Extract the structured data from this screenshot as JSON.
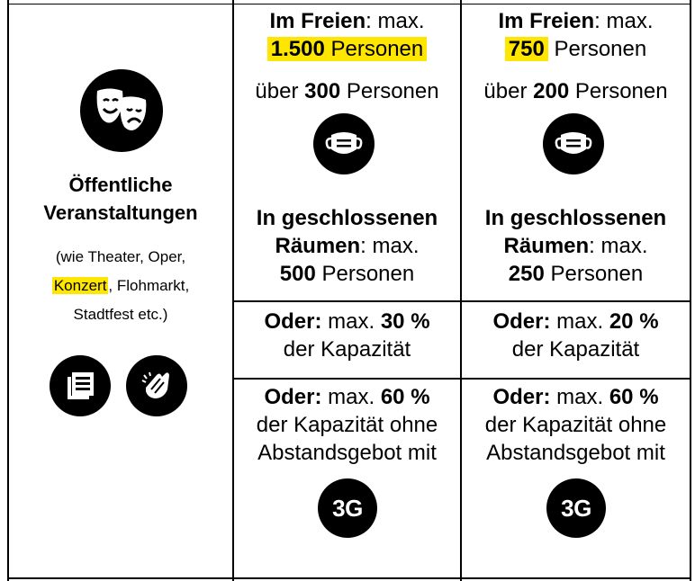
{
  "category": {
    "icon": "theater-masks-icon",
    "title_line1": "Öffentliche",
    "title_line2": "Veranstaltungen",
    "sub_line1": "(wie Theater, Oper,",
    "sub_highlight": "Konzert",
    "sub_line2_rest": ", Flohmarkt,",
    "sub_line3": "Stadtfest etc.)",
    "icons": [
      "document-list-icon",
      "hands-clapping-icon"
    ]
  },
  "columns": [
    {
      "outdoor_label": "Im Freien",
      "outdoor_suffix": ": max.",
      "outdoor_value": "1.500",
      "outdoor_unit": " Personen",
      "mask_prefix": "über ",
      "mask_value": "300",
      "mask_unit": " Personen",
      "indoor_line1": "In geschlossenen",
      "indoor_label2": "Räumen",
      "indoor_suffix": ": max.",
      "indoor_value": "500",
      "indoor_unit": " Personen",
      "capacity_label": "Oder:",
      "capacity_mid": " max. ",
      "capacity_value": "30 %",
      "capacity_line2": "der Kapazität",
      "three_g_label": "Oder:",
      "three_g_mid": " max. ",
      "three_g_value": "60 %",
      "three_g_line2": "der Kapazität ohne",
      "three_g_line3": "Abstandsgebot mit",
      "three_g_badge": "3G"
    },
    {
      "outdoor_label": "Im Freien",
      "outdoor_suffix": ": max.",
      "outdoor_value": "750",
      "outdoor_unit": " Personen",
      "mask_prefix": "über ",
      "mask_value": "200",
      "mask_unit": " Personen",
      "indoor_line1": "In geschlossenen",
      "indoor_label2": "Räumen",
      "indoor_suffix": ": max.",
      "indoor_value": "250",
      "indoor_unit": " Personen",
      "capacity_label": "Oder:",
      "capacity_mid": " max. ",
      "capacity_value": "20 %",
      "capacity_line2": "der Kapazität",
      "three_g_label": "Oder:",
      "three_g_mid": " max. ",
      "three_g_value": "60 %",
      "three_g_line2": "der Kapazität ohne",
      "three_g_line3": "Abstandsgebot mit",
      "three_g_badge": "3G"
    }
  ],
  "colors": {
    "highlight": "#ffe600",
    "icon": "#000000"
  }
}
